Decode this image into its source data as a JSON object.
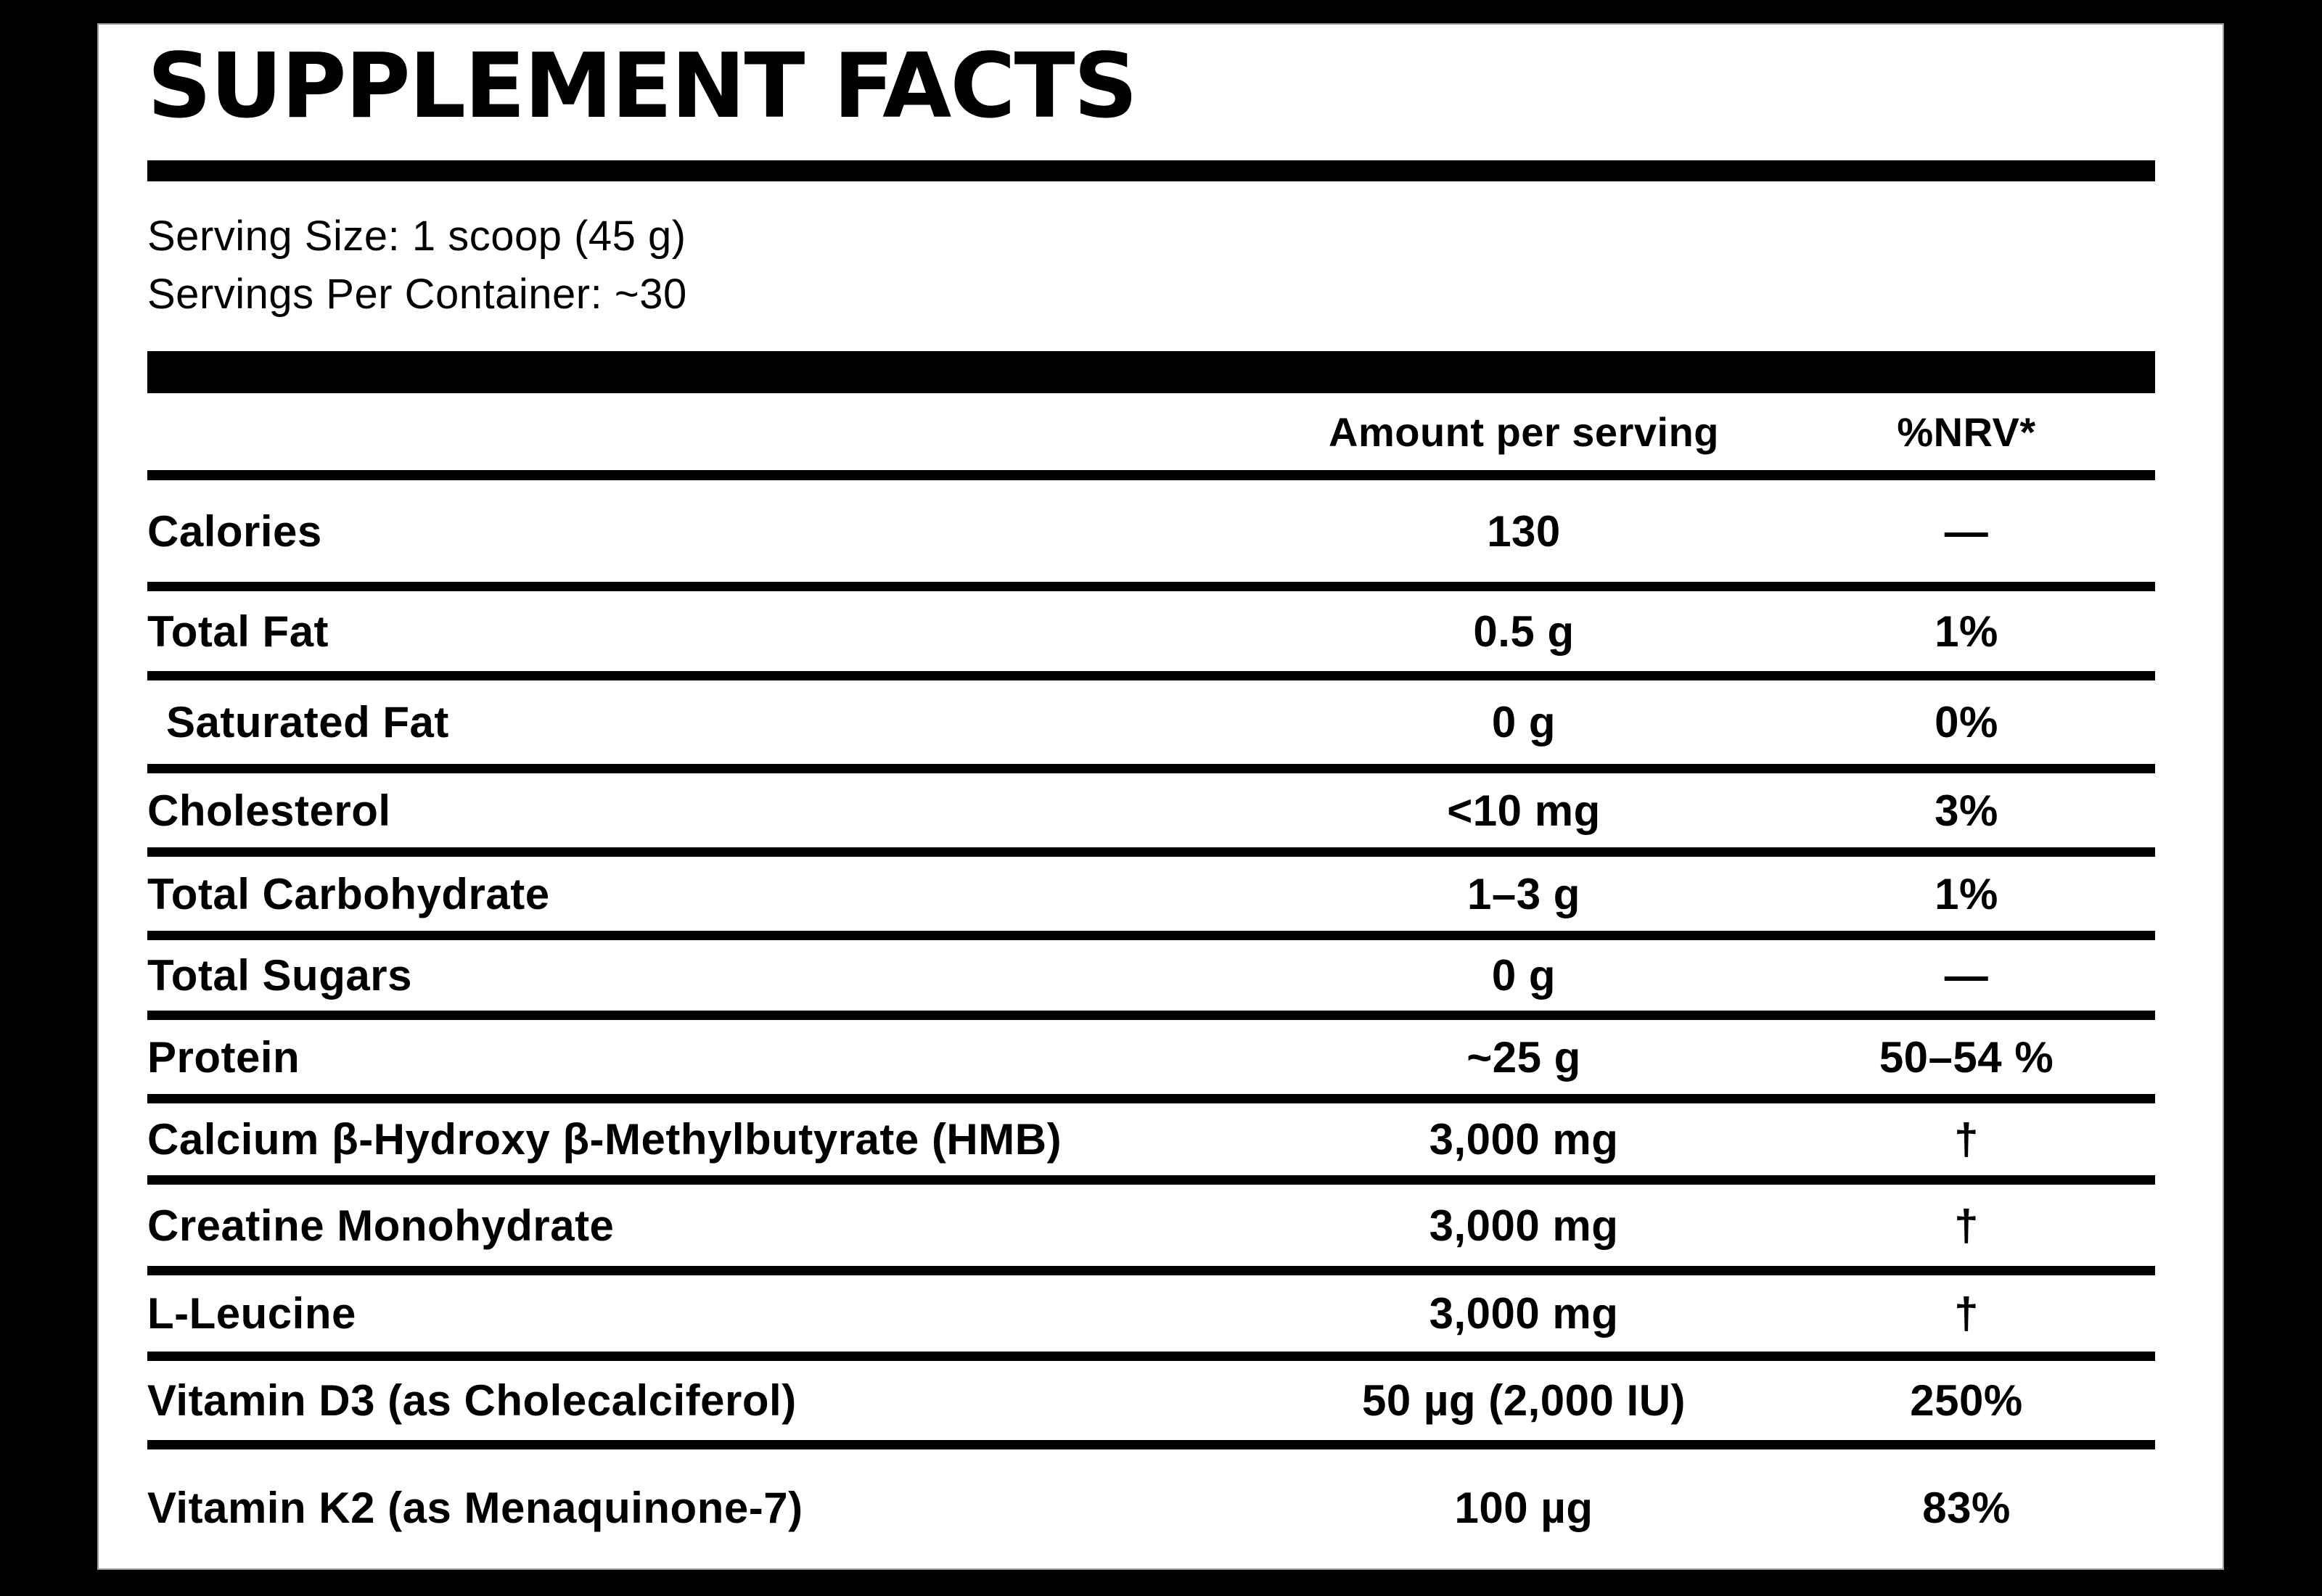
{
  "panel": {
    "title": "SUPPLEMENT FACTS",
    "serving_size": "Serving Size: 1 scoop (45 g)",
    "servings_per_container": "Servings Per Container: ~30",
    "columns": {
      "amount": "Amount per serving",
      "nrv": "%NRV*"
    },
    "rows": [
      {
        "name": "Calories",
        "amount": "130",
        "nrv": "—",
        "indent": false
      },
      {
        "name": "Total Fat",
        "amount": "0.5 g",
        "nrv": "1%",
        "indent": false
      },
      {
        "name": "Saturated Fat",
        "amount": "0 g",
        "nrv": "0%",
        "indent": true
      },
      {
        "name": "Cholesterol",
        "amount": "<10 mg",
        "nrv": "3%",
        "indent": false
      },
      {
        "name": "Total Carbohydrate",
        "amount": "1–3 g",
        "nrv": "1%",
        "indent": false
      },
      {
        "name": "Total Sugars",
        "amount": "0 g",
        "nrv": "—",
        "indent": false
      },
      {
        "name": "Protein",
        "amount": "~25 g",
        "nrv": "50–54 %",
        "indent": false
      },
      {
        "name": "Calcium β-Hydroxy β-Methylbutyrate (HMB)",
        "amount": "3,000 mg",
        "nrv": "†",
        "indent": false
      },
      {
        "name": "Creatine Monohydrate",
        "amount": "3,000 mg",
        "nrv": "†",
        "indent": false
      },
      {
        "name": "L-Leucine",
        "amount": "3,000 mg",
        "nrv": "†",
        "indent": false
      },
      {
        "name": "Vitamin D3 (as Cholecalciferol)",
        "amount": "50 µg (2,000 IU)",
        "nrv": "250%",
        "indent": false
      },
      {
        "name": "Vitamin K2 (as Menaquinone-7)",
        "amount": "100 µg",
        "nrv": "83%",
        "indent": false
      }
    ],
    "colors": {
      "page_background": "#000000",
      "panel_background": "#ffffff",
      "text": "#000000"
    }
  }
}
